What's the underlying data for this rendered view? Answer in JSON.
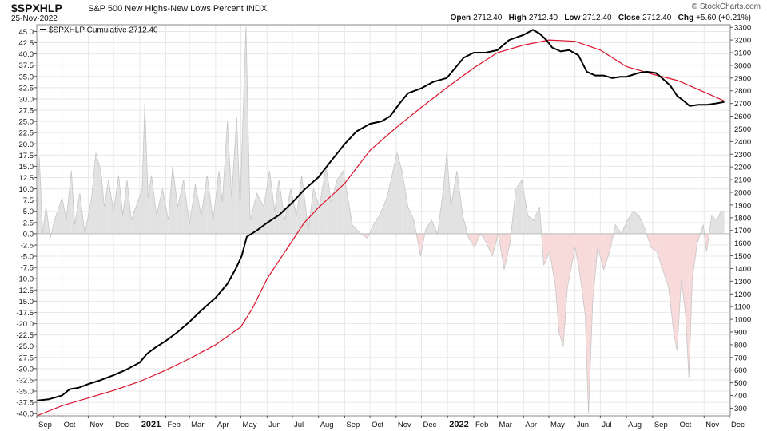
{
  "header": {
    "symbol": "$SPXHLP",
    "description": "S&P 500 New Highs-New Lows Percent INDX",
    "date": "25-Nov-2022",
    "brand": "© StockCharts.com",
    "open_label": "Open",
    "open_value": "2712.40",
    "high_label": "High",
    "high_value": "2712.40",
    "low_label": "Low",
    "low_value": "2712.40",
    "close_label": "Close",
    "close_value": "2712.40",
    "chg_label": "Chg",
    "chg_value": "+5.60 (+0.21%)"
  },
  "chart_data": {
    "type": "line",
    "legend": {
      "label": "$SPXHLP Cumulative 2712.40",
      "placement": "top-left"
    },
    "left_axis": {
      "ticks": [
        45.0,
        42.5,
        40.0,
        37.5,
        35.0,
        32.5,
        30.0,
        27.5,
        25.0,
        22.5,
        20.0,
        17.5,
        15.0,
        12.5,
        10.0,
        7.5,
        5.0,
        2.5,
        0.0,
        -2.5,
        -5.0,
        -7.5,
        -10.0,
        -12.5,
        -15.0,
        -17.5,
        -20.0,
        -22.5,
        -25.0,
        -27.5,
        -30.0,
        -32.5,
        -35.0,
        -37.5,
        -40.0
      ],
      "range": [
        -40.5,
        46.5
      ]
    },
    "right_axis": {
      "ticks": [
        3300,
        3200,
        3100,
        3000,
        2900,
        2800,
        2700,
        2600,
        2500,
        2400,
        2300,
        2200,
        2100,
        2000,
        1900,
        1800,
        1700,
        1600,
        1500,
        1400,
        1300,
        1200,
        1100,
        1000,
        900,
        800,
        700,
        600,
        500,
        400,
        300
      ],
      "range": [
        240,
        3320
      ]
    },
    "x_axis": {
      "start": "2020-09-01",
      "end": "2022-12-02",
      "ticks": [
        {
          "label": "Sep",
          "date": "2020-09-01",
          "bold": false
        },
        {
          "label": "Oct",
          "date": "2020-10-01",
          "bold": false
        },
        {
          "label": "Nov",
          "date": "2020-11-01",
          "bold": false
        },
        {
          "label": "Dec",
          "date": "2020-12-01",
          "bold": false
        },
        {
          "label": "2021",
          "date": "2021-01-01",
          "bold": true
        },
        {
          "label": "Feb",
          "date": "2021-02-01",
          "bold": false
        },
        {
          "label": "Mar",
          "date": "2021-03-01",
          "bold": false
        },
        {
          "label": "Apr",
          "date": "2021-04-01",
          "bold": false
        },
        {
          "label": "May",
          "date": "2021-05-01",
          "bold": false
        },
        {
          "label": "Jun",
          "date": "2021-06-01",
          "bold": false
        },
        {
          "label": "Jul",
          "date": "2021-07-01",
          "bold": false
        },
        {
          "label": "Aug",
          "date": "2021-08-01",
          "bold": false
        },
        {
          "label": "Sep",
          "date": "2021-09-01",
          "bold": false
        },
        {
          "label": "Oct",
          "date": "2021-10-01",
          "bold": false
        },
        {
          "label": "Nov",
          "date": "2021-11-01",
          "bold": false
        },
        {
          "label": "Dec",
          "date": "2021-12-01",
          "bold": false
        },
        {
          "label": "2022",
          "date": "2022-01-01",
          "bold": true
        },
        {
          "label": "Feb",
          "date": "2022-02-01",
          "bold": false
        },
        {
          "label": "Mar",
          "date": "2022-03-01",
          "bold": false
        },
        {
          "label": "Apr",
          "date": "2022-04-01",
          "bold": false
        },
        {
          "label": "May",
          "date": "2022-05-01",
          "bold": false
        },
        {
          "label": "Jun",
          "date": "2022-06-01",
          "bold": false
        },
        {
          "label": "Jul",
          "date": "2022-07-01",
          "bold": false
        },
        {
          "label": "Aug",
          "date": "2022-08-01",
          "bold": false
        },
        {
          "label": "Sep",
          "date": "2022-09-01",
          "bold": false
        },
        {
          "label": "Oct",
          "date": "2022-10-01",
          "bold": false
        },
        {
          "label": "Nov",
          "date": "2022-11-01",
          "bold": false
        },
        {
          "label": "Dec",
          "date": "2022-12-01",
          "bold": false
        }
      ]
    },
    "daily_percent": {
      "name": "",
      "axis": "left",
      "points": [
        [
          "2020-09-01",
          4
        ],
        [
          "2020-09-04",
          17
        ],
        [
          "2020-09-08",
          0
        ],
        [
          "2020-09-12",
          6
        ],
        [
          "2020-09-17",
          -1
        ],
        [
          "2020-09-22",
          3
        ],
        [
          "2020-10-01",
          8
        ],
        [
          "2020-10-06",
          3
        ],
        [
          "2020-10-12",
          14
        ],
        [
          "2020-10-16",
          2
        ],
        [
          "2020-10-22",
          9
        ],
        [
          "2020-10-28",
          0
        ],
        [
          "2020-11-05",
          8
        ],
        [
          "2020-11-10",
          18
        ],
        [
          "2020-11-16",
          14
        ],
        [
          "2020-11-20",
          6
        ],
        [
          "2020-11-25",
          12
        ],
        [
          "2020-12-01",
          5
        ],
        [
          "2020-12-07",
          13
        ],
        [
          "2020-12-12",
          4
        ],
        [
          "2020-12-17",
          12
        ],
        [
          "2020-12-22",
          3
        ],
        [
          "2021-01-04",
          10
        ],
        [
          "2021-01-07",
          29
        ],
        [
          "2021-01-11",
          8
        ],
        [
          "2021-01-15",
          13
        ],
        [
          "2021-01-21",
          4
        ],
        [
          "2021-01-28",
          10
        ],
        [
          "2021-02-04",
          3
        ],
        [
          "2021-02-09",
          15
        ],
        [
          "2021-02-15",
          6
        ],
        [
          "2021-02-22",
          12
        ],
        [
          "2021-03-01",
          2
        ],
        [
          "2021-03-08",
          11
        ],
        [
          "2021-03-15",
          4
        ],
        [
          "2021-03-22",
          13
        ],
        [
          "2021-03-29",
          3
        ],
        [
          "2021-04-05",
          14
        ],
        [
          "2021-04-09",
          7
        ],
        [
          "2021-04-15",
          25
        ],
        [
          "2021-04-20",
          8
        ],
        [
          "2021-04-26",
          26
        ],
        [
          "2021-04-30",
          6
        ],
        [
          "2021-05-07",
          46
        ],
        [
          "2021-05-12",
          3
        ],
        [
          "2021-05-20",
          9
        ],
        [
          "2021-05-28",
          6
        ],
        [
          "2021-06-04",
          14
        ],
        [
          "2021-06-10",
          5
        ],
        [
          "2021-06-15",
          12
        ],
        [
          "2021-06-22",
          3
        ],
        [
          "2021-06-29",
          10
        ],
        [
          "2021-07-06",
          4
        ],
        [
          "2021-07-12",
          13
        ],
        [
          "2021-07-20",
          1
        ],
        [
          "2021-07-26",
          10
        ],
        [
          "2021-08-02",
          6
        ],
        [
          "2021-08-10",
          15
        ],
        [
          "2021-08-16",
          7
        ],
        [
          "2021-08-23",
          12
        ],
        [
          "2021-08-30",
          14
        ],
        [
          "2021-09-03",
          10
        ],
        [
          "2021-09-10",
          2
        ],
        [
          "2021-09-20",
          0
        ],
        [
          "2021-09-28",
          -1
        ],
        [
          "2021-10-05",
          2
        ],
        [
          "2021-10-12",
          4
        ],
        [
          "2021-10-21",
          8
        ],
        [
          "2021-10-26",
          12
        ],
        [
          "2021-11-02",
          18
        ],
        [
          "2021-11-08",
          14
        ],
        [
          "2021-11-15",
          6
        ],
        [
          "2021-11-22",
          3
        ],
        [
          "2021-11-30",
          -5
        ],
        [
          "2021-12-06",
          1
        ],
        [
          "2021-12-13",
          3
        ],
        [
          "2021-12-20",
          0
        ],
        [
          "2021-12-27",
          10
        ],
        [
          "2021-12-31",
          18
        ],
        [
          "2022-01-05",
          6
        ],
        [
          "2022-01-12",
          14
        ],
        [
          "2022-01-19",
          4
        ],
        [
          "2022-01-26",
          -1
        ],
        [
          "2022-02-02",
          -3
        ],
        [
          "2022-02-09",
          0
        ],
        [
          "2022-02-16",
          -2
        ],
        [
          "2022-02-23",
          -5
        ],
        [
          "2022-03-02",
          0
        ],
        [
          "2022-03-09",
          -8
        ],
        [
          "2022-03-16",
          -2
        ],
        [
          "2022-03-23",
          10
        ],
        [
          "2022-03-30",
          12
        ],
        [
          "2022-04-06",
          4
        ],
        [
          "2022-04-13",
          3
        ],
        [
          "2022-04-20",
          6
        ],
        [
          "2022-04-25",
          -7
        ],
        [
          "2022-05-02",
          -4
        ],
        [
          "2022-05-09",
          -12
        ],
        [
          "2022-05-13",
          -22
        ],
        [
          "2022-05-18",
          -25
        ],
        [
          "2022-05-23",
          -12
        ],
        [
          "2022-06-01",
          -3
        ],
        [
          "2022-06-06",
          -8
        ],
        [
          "2022-06-13",
          -18
        ],
        [
          "2022-06-17",
          -40
        ],
        [
          "2022-06-22",
          -15
        ],
        [
          "2022-06-28",
          -3
        ],
        [
          "2022-07-05",
          -8
        ],
        [
          "2022-07-12",
          -4
        ],
        [
          "2022-07-19",
          2
        ],
        [
          "2022-07-26",
          0
        ],
        [
          "2022-08-02",
          3
        ],
        [
          "2022-08-09",
          5
        ],
        [
          "2022-08-16",
          4
        ],
        [
          "2022-08-23",
          1
        ],
        [
          "2022-08-30",
          -3
        ],
        [
          "2022-09-06",
          -4
        ],
        [
          "2022-09-13",
          -8
        ],
        [
          "2022-09-20",
          -12
        ],
        [
          "2022-09-26",
          -22
        ],
        [
          "2022-09-30",
          -26
        ],
        [
          "2022-10-05",
          -10
        ],
        [
          "2022-10-10",
          -18
        ],
        [
          "2022-10-14",
          -32
        ],
        [
          "2022-10-18",
          -10
        ],
        [
          "2022-10-24",
          -2
        ],
        [
          "2022-10-31",
          2
        ],
        [
          "2022-11-04",
          -4
        ],
        [
          "2022-11-10",
          4
        ],
        [
          "2022-11-16",
          3
        ],
        [
          "2022-11-21",
          5
        ],
        [
          "2022-11-25",
          5
        ]
      ]
    },
    "cumulative": {
      "name": "$SPXHLP Cumulative",
      "axis": "right",
      "points": [
        [
          "2020-09-01",
          360
        ],
        [
          "2020-09-15",
          370
        ],
        [
          "2020-10-01",
          400
        ],
        [
          "2020-10-10",
          450
        ],
        [
          "2020-10-20",
          460
        ],
        [
          "2020-11-01",
          490
        ],
        [
          "2020-11-15",
          520
        ],
        [
          "2020-12-01",
          560
        ],
        [
          "2020-12-15",
          600
        ],
        [
          "2021-01-01",
          660
        ],
        [
          "2021-01-10",
          730
        ],
        [
          "2021-01-20",
          780
        ],
        [
          "2021-02-01",
          830
        ],
        [
          "2021-02-15",
          900
        ],
        [
          "2021-03-01",
          980
        ],
        [
          "2021-03-15",
          1070
        ],
        [
          "2021-04-01",
          1170
        ],
        [
          "2021-04-15",
          1280
        ],
        [
          "2021-04-25",
          1400
        ],
        [
          "2021-05-02",
          1500
        ],
        [
          "2021-05-08",
          1650
        ],
        [
          "2021-05-20",
          1700
        ],
        [
          "2021-06-01",
          1760
        ],
        [
          "2021-06-15",
          1820
        ],
        [
          "2021-07-01",
          1920
        ],
        [
          "2021-07-15",
          2020
        ],
        [
          "2021-08-01",
          2120
        ],
        [
          "2021-08-15",
          2240
        ],
        [
          "2021-09-01",
          2380
        ],
        [
          "2021-09-15",
          2480
        ],
        [
          "2021-10-01",
          2540
        ],
        [
          "2021-10-15",
          2560
        ],
        [
          "2021-10-25",
          2600
        ],
        [
          "2021-11-05",
          2700
        ],
        [
          "2021-11-15",
          2780
        ],
        [
          "2021-12-01",
          2820
        ],
        [
          "2021-12-15",
          2870
        ],
        [
          "2021-12-31",
          2900
        ],
        [
          "2022-01-10",
          2980
        ],
        [
          "2022-01-20",
          3060
        ],
        [
          "2022-02-01",
          3100
        ],
        [
          "2022-02-15",
          3100
        ],
        [
          "2022-03-01",
          3120
        ],
        [
          "2022-03-15",
          3200
        ],
        [
          "2022-04-01",
          3240
        ],
        [
          "2022-04-12",
          3280
        ],
        [
          "2022-04-20",
          3250
        ],
        [
          "2022-04-28",
          3200
        ],
        [
          "2022-05-05",
          3140
        ],
        [
          "2022-05-15",
          3110
        ],
        [
          "2022-05-25",
          3120
        ],
        [
          "2022-06-05",
          3080
        ],
        [
          "2022-06-15",
          2950
        ],
        [
          "2022-06-25",
          2920
        ],
        [
          "2022-07-05",
          2920
        ],
        [
          "2022-07-15",
          2900
        ],
        [
          "2022-07-25",
          2910
        ],
        [
          "2022-08-01",
          2910
        ],
        [
          "2022-08-15",
          2940
        ],
        [
          "2022-08-25",
          2950
        ],
        [
          "2022-09-05",
          2940
        ],
        [
          "2022-09-12",
          2900
        ],
        [
          "2022-09-22",
          2840
        ],
        [
          "2022-09-30",
          2760
        ],
        [
          "2022-10-08",
          2720
        ],
        [
          "2022-10-15",
          2680
        ],
        [
          "2022-10-25",
          2690
        ],
        [
          "2022-11-05",
          2690
        ],
        [
          "2022-11-15",
          2700
        ],
        [
          "2022-11-25",
          2712
        ]
      ]
    },
    "moving_average": {
      "name": "",
      "axis": "right",
      "points": [
        [
          "2020-09-01",
          240
        ],
        [
          "2020-10-01",
          320
        ],
        [
          "2020-11-01",
          380
        ],
        [
          "2020-12-01",
          440
        ],
        [
          "2021-01-01",
          510
        ],
        [
          "2021-02-01",
          600
        ],
        [
          "2021-03-01",
          690
        ],
        [
          "2021-04-01",
          800
        ],
        [
          "2021-05-01",
          940
        ],
        [
          "2021-05-15",
          1090
        ],
        [
          "2021-06-01",
          1320
        ],
        [
          "2021-06-15",
          1460
        ],
        [
          "2021-07-01",
          1620
        ],
        [
          "2021-07-15",
          1760
        ],
        [
          "2021-08-01",
          1880
        ],
        [
          "2021-09-01",
          2070
        ],
        [
          "2021-10-01",
          2330
        ],
        [
          "2021-11-01",
          2510
        ],
        [
          "2021-12-01",
          2670
        ],
        [
          "2022-01-01",
          2830
        ],
        [
          "2022-02-01",
          2980
        ],
        [
          "2022-03-01",
          3100
        ],
        [
          "2022-04-01",
          3160
        ],
        [
          "2022-05-01",
          3200
        ],
        [
          "2022-06-01",
          3190
        ],
        [
          "2022-07-01",
          3120
        ],
        [
          "2022-08-01",
          2990
        ],
        [
          "2022-09-01",
          2930
        ],
        [
          "2022-10-01",
          2880
        ],
        [
          "2022-11-01",
          2790
        ],
        [
          "2022-11-25",
          2720
        ]
      ]
    },
    "colors": {
      "positive_fill": "#e2e2e2",
      "negative_fill": "#f8dada",
      "cumulative_line": "#000000",
      "average_line": "#d8142c",
      "grid": "#e8e8e8"
    },
    "grid": true
  }
}
